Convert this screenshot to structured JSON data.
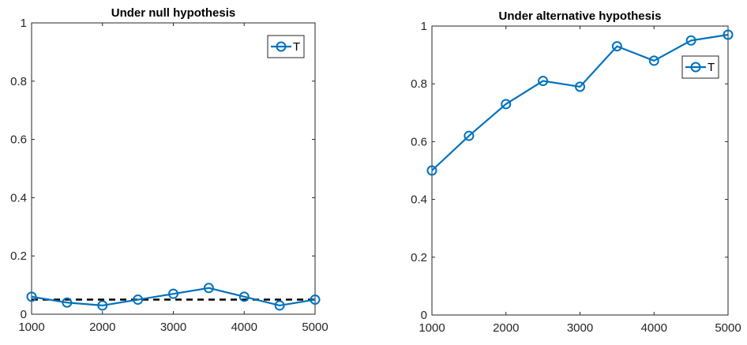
{
  "chart_data": [
    {
      "type": "line",
      "title": "Under null hypothesis",
      "xlabel": "",
      "ylabel": "",
      "xlim": [
        1000,
        5000
      ],
      "ylim": [
        0,
        1
      ],
      "xticks": [
        1000,
        2000,
        3000,
        4000,
        5000
      ],
      "yticks": [
        0,
        0.2,
        0.4,
        0.6,
        0.8,
        1
      ],
      "ytick_labels": [
        "0",
        "0.2",
        "0.4",
        "0.6",
        "0.8",
        "1"
      ],
      "grid": false,
      "legend_position": "top-right",
      "x": [
        1000,
        1500,
        2000,
        2500,
        3000,
        3500,
        4000,
        4500,
        5000
      ],
      "series": [
        {
          "name": "T",
          "values": [
            0.06,
            0.04,
            0.03,
            0.05,
            0.07,
            0.09,
            0.06,
            0.03,
            0.05
          ],
          "color": "#0072BD",
          "marker": "circle",
          "style": "solid"
        }
      ],
      "reference_line": {
        "y": 0.05,
        "color": "#000000",
        "style": "dashed"
      }
    },
    {
      "type": "line",
      "title": "Under alternative hypothesis",
      "xlabel": "",
      "ylabel": "",
      "xlim": [
        1000,
        5000
      ],
      "ylim": [
        0,
        1
      ],
      "xticks": [
        1000,
        2000,
        3000,
        4000,
        5000
      ],
      "yticks": [
        0,
        0.2,
        0.4,
        0.6,
        0.8,
        1
      ],
      "ytick_labels": [
        "0",
        "0.2",
        "0.4",
        "0.6",
        "0.8",
        "1"
      ],
      "grid": false,
      "legend_position": "top-right",
      "x": [
        1000,
        1500,
        2000,
        2500,
        3000,
        3500,
        4000,
        4500,
        5000
      ],
      "series": [
        {
          "name": "T",
          "values": [
            0.5,
            0.62,
            0.73,
            0.81,
            0.79,
            0.93,
            0.88,
            0.95,
            0.97
          ],
          "color": "#0072BD",
          "marker": "circle",
          "style": "solid"
        }
      ]
    }
  ]
}
